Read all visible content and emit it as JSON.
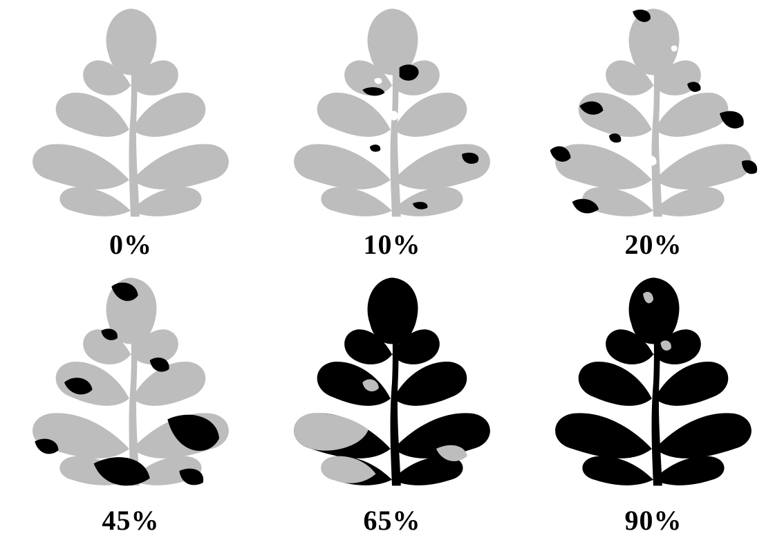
{
  "colors": {
    "healthy": "#bdbdbd",
    "infected": "#000000",
    "background": "#ffffff"
  },
  "panels": [
    {
      "label": "0%"
    },
    {
      "label": "10%"
    },
    {
      "label": "20%"
    },
    {
      "label": "45%"
    },
    {
      "label": "65%"
    },
    {
      "label": "90%"
    }
  ]
}
